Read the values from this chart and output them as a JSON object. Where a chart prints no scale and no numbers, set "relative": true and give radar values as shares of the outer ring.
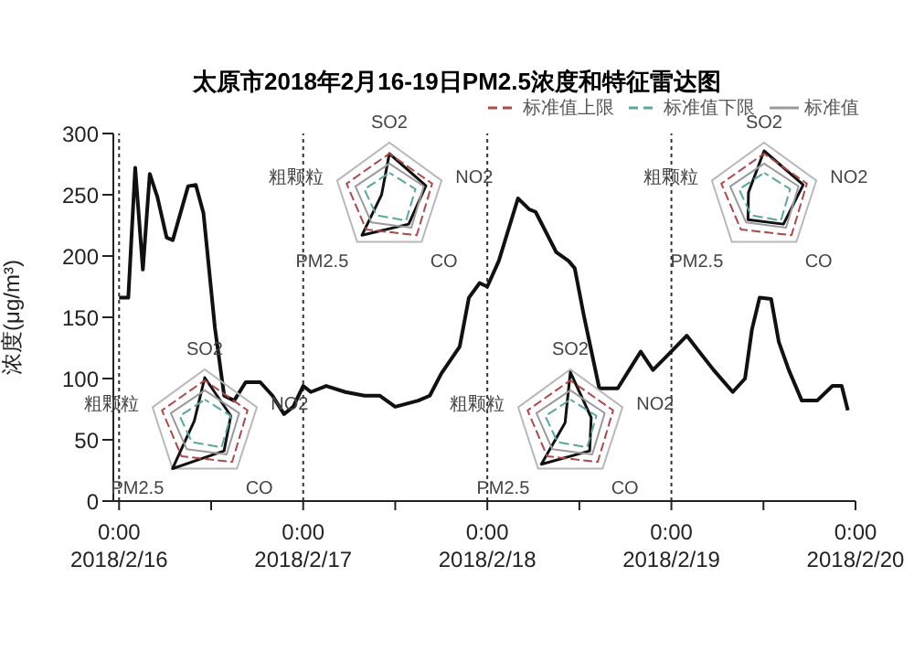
{
  "chart_data": [
    {
      "type": "line",
      "title": "太原市2018年2月16-19日PM2.5浓度和特征雷达图",
      "ylabel": "浓度(μg/m³)",
      "x": [
        "2018-02-16T00:00",
        "2018-02-16T01:12",
        "2018-02-16T02:06",
        "2018-02-16T03:06",
        "2018-02-16T04:00",
        "2018-02-16T05:00",
        "2018-02-16T06:12",
        "2018-02-16T07:00",
        "2018-02-16T09:00",
        "2018-02-16T10:00",
        "2018-02-16T11:00",
        "2018-02-16T12:30",
        "2018-02-16T13:42",
        "2018-02-16T15:00",
        "2018-02-16T16:30",
        "2018-02-16T18:24",
        "2018-02-16T20:00",
        "2018-02-16T21:30",
        "2018-02-16T22:42",
        "2018-02-17T00:00",
        "2018-02-17T01:00",
        "2018-02-17T03:00",
        "2018-02-17T05:30",
        "2018-02-17T08:00",
        "2018-02-17T10:00",
        "2018-02-17T12:00",
        "2018-02-17T15:00",
        "2018-02-17T16:30",
        "2018-02-17T18:00",
        "2018-02-17T20:24",
        "2018-02-17T21:36",
        "2018-02-17T23:00",
        "2018-02-18T00:00",
        "2018-02-18T01:30",
        "2018-02-18T04:00",
        "2018-02-18T05:30",
        "2018-02-18T06:18",
        "2018-02-18T09:00",
        "2018-02-18T10:36",
        "2018-02-18T11:24",
        "2018-02-18T12:36",
        "2018-02-18T14:36",
        "2018-02-18T17:00",
        "2018-02-18T18:30",
        "2018-02-18T20:00",
        "2018-02-18T21:36",
        "2018-02-18T23:30",
        "2018-02-19T02:00",
        "2018-02-19T05:30",
        "2018-02-19T08:00",
        "2018-02-19T09:36",
        "2018-02-19T10:30",
        "2018-02-19T11:30",
        "2018-02-19T13:00",
        "2018-02-19T14:00",
        "2018-02-19T15:18",
        "2018-02-19T17:00",
        "2018-02-19T19:00",
        "2018-02-19T21:00",
        "2018-02-19T22:12",
        "2018-02-19T23:00"
      ],
      "values": [
        166,
        166,
        272,
        189,
        267,
        248,
        215,
        213,
        257,
        258,
        235,
        141,
        86,
        82,
        97,
        97,
        86,
        71,
        77,
        94,
        89,
        94,
        89,
        86,
        86,
        77,
        82,
        86,
        104,
        126,
        166,
        178,
        175,
        196,
        247,
        238,
        236,
        203,
        196,
        190,
        151,
        92,
        92,
        107,
        122,
        107,
        119,
        135,
        107,
        89,
        100,
        140,
        166,
        165,
        130,
        107,
        82,
        82,
        94,
        94,
        74
      ],
      "color": "#111111",
      "marker": "none",
      "line_style": "solid",
      "xlim": [
        "2018-02-15T23:15",
        "2018-02-20T00:00"
      ],
      "xticks": [
        {
          "value": "2018-02-16T00:00",
          "label": "0:00\n2018/2/16"
        },
        {
          "value": "2018-02-16T12:00",
          "label": null
        },
        {
          "value": "2018-02-17T00:00",
          "label": "0:00\n2018/2/17"
        },
        {
          "value": "2018-02-17T12:00",
          "label": null
        },
        {
          "value": "2018-02-18T00:00",
          "label": "0:00\n2018/2/18"
        },
        {
          "value": "2018-02-18T12:00",
          "label": null
        },
        {
          "value": "2018-02-19T00:00",
          "label": "0:00\n2018/2/19"
        },
        {
          "value": "2018-02-19T12:00",
          "label": null
        },
        {
          "value": "2018-02-20T00:00",
          "label": "0:00\n2018/2/20"
        }
      ],
      "ylim": [
        0,
        300
      ],
      "yticks": [
        0,
        50,
        100,
        150,
        200,
        250,
        300
      ],
      "ref_lines": [
        {
          "axis": "x",
          "value": "2018-02-16T00:00",
          "line_style": "dotted"
        },
        {
          "axis": "x",
          "value": "2018-02-17T00:00",
          "line_style": "dotted"
        },
        {
          "axis": "x",
          "value": "2018-02-18T00:00",
          "line_style": "dotted"
        },
        {
          "axis": "x",
          "value": "2018-02-19T00:00",
          "line_style": "dotted"
        }
      ]
    },
    {
      "type": "radar",
      "relative": true,
      "grid": true,
      "legend": "top right",
      "categories": [
        "SO2",
        "NO2",
        "CO",
        "PM2.5",
        "粗颗粒"
      ],
      "series": [
        {
          "name": "标准值上限",
          "color": "#b04848",
          "line_style": "dashed",
          "values": [
            0.8,
            0.82,
            0.85,
            0.72,
            0.82
          ]
        },
        {
          "name": "标准值下限",
          "color": "#5aa6a0",
          "line_style": "dashed",
          "values": [
            0.45,
            0.5,
            0.52,
            0.4,
            0.48
          ]
        },
        {
          "name": "标准值",
          "color": "#9a9a9a",
          "line_style": "solid",
          "values": [
            0.62,
            0.66,
            0.68,
            0.56,
            0.65
          ]
        },
        {
          "color": "#111111",
          "line_style": "solid",
          "values": [
            0.8,
            0.7,
            0.6,
            0.85,
            0.15
          ]
        }
      ]
    },
    {
      "type": "radar",
      "relative": true,
      "grid": true,
      "categories": [
        "SO2",
        "NO2",
        "CO",
        "PM2.5",
        "粗颗粒"
      ],
      "series": [
        {
          "color": "#b04848",
          "line_style": "dashed",
          "values": [
            0.8,
            0.82,
            0.85,
            0.72,
            0.82
          ]
        },
        {
          "color": "#5aa6a0",
          "line_style": "dashed",
          "values": [
            0.45,
            0.5,
            0.52,
            0.4,
            0.48
          ]
        },
        {
          "color": "#9a9a9a",
          "line_style": "solid",
          "values": [
            0.62,
            0.66,
            0.68,
            0.56,
            0.65
          ]
        },
        {
          "color": "#111111",
          "line_style": "solid",
          "values": [
            0.85,
            0.5,
            0.6,
            1,
            0.2
          ]
        }
      ]
    },
    {
      "type": "radar",
      "relative": true,
      "grid": true,
      "categories": [
        "SO2",
        "NO2",
        "CO",
        "PM2.5",
        "粗颗粒"
      ],
      "series": [
        {
          "color": "#b04848",
          "line_style": "dashed",
          "values": [
            0.8,
            0.82,
            0.85,
            0.72,
            0.82
          ]
        },
        {
          "color": "#5aa6a0",
          "line_style": "dashed",
          "values": [
            0.45,
            0.5,
            0.52,
            0.4,
            0.48
          ]
        },
        {
          "color": "#9a9a9a",
          "line_style": "solid",
          "values": [
            0.62,
            0.66,
            0.68,
            0.56,
            0.65
          ]
        },
        {
          "color": "#111111",
          "line_style": "solid",
          "values": [
            0.85,
            0.75,
            0.6,
            0.5,
            0.3
          ]
        }
      ]
    },
    {
      "type": "radar",
      "relative": true,
      "grid": true,
      "categories": [
        "SO2",
        "NO2",
        "CO",
        "PM2.5",
        "粗颗粒"
      ],
      "series": [
        {
          "color": "#b04848",
          "line_style": "dashed",
          "values": [
            0.8,
            0.82,
            0.85,
            0.72,
            0.82
          ]
        },
        {
          "color": "#5aa6a0",
          "line_style": "dashed",
          "values": [
            0.45,
            0.5,
            0.52,
            0.4,
            0.48
          ]
        },
        {
          "color": "#9a9a9a",
          "line_style": "solid",
          "values": [
            0.62,
            0.66,
            0.68,
            0.56,
            0.65
          ]
        },
        {
          "color": "#111111",
          "line_style": "solid",
          "values": [
            0.95,
            0.4,
            0.6,
            0.9,
            0.1
          ]
        }
      ]
    }
  ]
}
